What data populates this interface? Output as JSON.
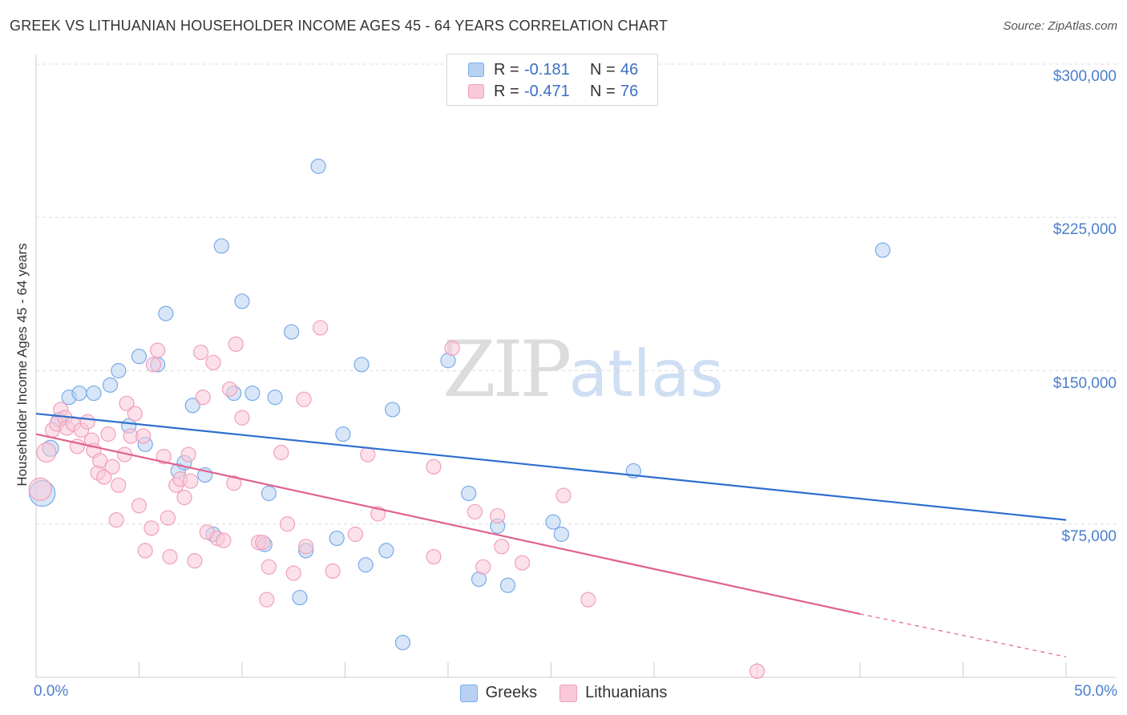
{
  "chart_data": {
    "type": "scatter",
    "title": "GREEK VS LITHUANIAN HOUSEHOLDER INCOME AGES 45 - 64 YEARS CORRELATION CHART",
    "source": "Source: ZipAtlas.com",
    "ylabel": "Householder Income Ages 45 - 64 years",
    "xlabel": "",
    "xlim": [
      0,
      50
    ],
    "ylim": [
      0,
      300000
    ],
    "x_tick_labels": [
      "0.0%",
      "50.0%"
    ],
    "y_ticks": [
      75000,
      150000,
      225000,
      300000
    ],
    "y_tick_labels": [
      "$75,000",
      "$150,000",
      "$225,000",
      "$300,000"
    ],
    "grid": true,
    "legend_placement": "top-center",
    "watermark": {
      "part1": "ZIP",
      "part2": "atlas"
    },
    "series": [
      {
        "name": "Greeks",
        "color": "#7aaae8",
        "fill": "#b8d1f3",
        "R_label": "R =",
        "R": "-0.181",
        "N_label": "N =",
        "N": "46",
        "trend": {
          "x0": 0,
          "y0": 129000,
          "x1": 50,
          "y1": 77000
        },
        "points": [
          {
            "x": 0.3,
            "y": 90000,
            "s": 16
          },
          {
            "x": 0.7,
            "y": 112000,
            "s": 10
          },
          {
            "x": 1.1,
            "y": 126000
          },
          {
            "x": 1.6,
            "y": 137000
          },
          {
            "x": 2.1,
            "y": 139000
          },
          {
            "x": 2.8,
            "y": 139000
          },
          {
            "x": 3.6,
            "y": 143000
          },
          {
            "x": 4.0,
            "y": 150000
          },
          {
            "x": 4.5,
            "y": 123000
          },
          {
            "x": 5.0,
            "y": 157000
          },
          {
            "x": 5.3,
            "y": 114000
          },
          {
            "x": 5.9,
            "y": 153000
          },
          {
            "x": 6.3,
            "y": 178000
          },
          {
            "x": 6.9,
            "y": 101000
          },
          {
            "x": 7.2,
            "y": 105000
          },
          {
            "x": 7.6,
            "y": 133000
          },
          {
            "x": 8.2,
            "y": 99000
          },
          {
            "x": 8.6,
            "y": 70000
          },
          {
            "x": 9.0,
            "y": 211000
          },
          {
            "x": 9.6,
            "y": 139000
          },
          {
            "x": 10.0,
            "y": 184000
          },
          {
            "x": 10.5,
            "y": 139000
          },
          {
            "x": 11.1,
            "y": 65000
          },
          {
            "x": 11.3,
            "y": 90000
          },
          {
            "x": 11.6,
            "y": 137000
          },
          {
            "x": 12.4,
            "y": 169000
          },
          {
            "x": 12.8,
            "y": 39000
          },
          {
            "x": 13.1,
            "y": 62000
          },
          {
            "x": 13.7,
            "y": 250000
          },
          {
            "x": 14.6,
            "y": 68000
          },
          {
            "x": 14.9,
            "y": 119000
          },
          {
            "x": 15.8,
            "y": 153000
          },
          {
            "x": 16.0,
            "y": 55000
          },
          {
            "x": 17.0,
            "y": 62000
          },
          {
            "x": 17.3,
            "y": 131000
          },
          {
            "x": 17.8,
            "y": 17000
          },
          {
            "x": 20.0,
            "y": 155000
          },
          {
            "x": 21.0,
            "y": 90000
          },
          {
            "x": 21.5,
            "y": 48000
          },
          {
            "x": 22.4,
            "y": 74000
          },
          {
            "x": 22.9,
            "y": 45000
          },
          {
            "x": 25.1,
            "y": 76000
          },
          {
            "x": 25.5,
            "y": 70000
          },
          {
            "x": 29.0,
            "y": 101000
          },
          {
            "x": 41.1,
            "y": 209000
          }
        ]
      },
      {
        "name": "Lithuanians",
        "color": "#f0a0bb",
        "fill": "#f9c9d8",
        "R_label": "R =",
        "R": "-0.471",
        "N_label": "N =",
        "N": "76",
        "trend": {
          "x0": 0,
          "y0": 119000,
          "x1": 40,
          "y1": 31000
        },
        "trend_dashed": {
          "x0": 40,
          "y0": 31000,
          "x1": 50,
          "y1": 10000
        },
        "points": [
          {
            "x": 0.2,
            "y": 92000,
            "s": 14
          },
          {
            "x": 0.5,
            "y": 110000,
            "s": 12
          },
          {
            "x": 0.8,
            "y": 121000
          },
          {
            "x": 1.0,
            "y": 124000
          },
          {
            "x": 1.2,
            "y": 131000
          },
          {
            "x": 1.4,
            "y": 127000
          },
          {
            "x": 1.5,
            "y": 122000
          },
          {
            "x": 1.8,
            "y": 124000
          },
          {
            "x": 2.0,
            "y": 113000
          },
          {
            "x": 2.2,
            "y": 121000
          },
          {
            "x": 2.5,
            "y": 125000
          },
          {
            "x": 2.7,
            "y": 116000
          },
          {
            "x": 2.8,
            "y": 111000
          },
          {
            "x": 3.0,
            "y": 100000
          },
          {
            "x": 3.1,
            "y": 106000
          },
          {
            "x": 3.3,
            "y": 98000
          },
          {
            "x": 3.5,
            "y": 119000
          },
          {
            "x": 3.7,
            "y": 103000
          },
          {
            "x": 3.9,
            "y": 77000
          },
          {
            "x": 4.0,
            "y": 94000
          },
          {
            "x": 4.3,
            "y": 109000
          },
          {
            "x": 4.4,
            "y": 134000
          },
          {
            "x": 4.6,
            "y": 118000
          },
          {
            "x": 4.8,
            "y": 129000
          },
          {
            "x": 5.0,
            "y": 84000
          },
          {
            "x": 5.2,
            "y": 118000
          },
          {
            "x": 5.3,
            "y": 62000
          },
          {
            "x": 5.6,
            "y": 73000
          },
          {
            "x": 5.7,
            "y": 153000
          },
          {
            "x": 5.9,
            "y": 160000
          },
          {
            "x": 6.2,
            "y": 108000
          },
          {
            "x": 6.4,
            "y": 78000
          },
          {
            "x": 6.5,
            "y": 59000
          },
          {
            "x": 6.8,
            "y": 94000
          },
          {
            "x": 7.0,
            "y": 97000
          },
          {
            "x": 7.2,
            "y": 88000
          },
          {
            "x": 7.4,
            "y": 109000
          },
          {
            "x": 7.5,
            "y": 96000
          },
          {
            "x": 7.7,
            "y": 57000
          },
          {
            "x": 8.0,
            "y": 159000
          },
          {
            "x": 8.1,
            "y": 137000
          },
          {
            "x": 8.3,
            "y": 71000
          },
          {
            "x": 8.6,
            "y": 154000
          },
          {
            "x": 8.8,
            "y": 68000
          },
          {
            "x": 9.1,
            "y": 67000
          },
          {
            "x": 9.4,
            "y": 141000
          },
          {
            "x": 9.6,
            "y": 95000
          },
          {
            "x": 9.7,
            "y": 163000
          },
          {
            "x": 10.0,
            "y": 127000
          },
          {
            "x": 10.8,
            "y": 66000
          },
          {
            "x": 11.0,
            "y": 66000
          },
          {
            "x": 11.2,
            "y": 38000
          },
          {
            "x": 11.3,
            "y": 54000
          },
          {
            "x": 11.9,
            "y": 110000
          },
          {
            "x": 12.2,
            "y": 75000
          },
          {
            "x": 12.5,
            "y": 51000
          },
          {
            "x": 13.0,
            "y": 136000
          },
          {
            "x": 13.1,
            "y": 64000
          },
          {
            "x": 13.8,
            "y": 171000
          },
          {
            "x": 14.4,
            "y": 52000
          },
          {
            "x": 15.5,
            "y": 70000
          },
          {
            "x": 16.1,
            "y": 109000
          },
          {
            "x": 16.6,
            "y": 80000
          },
          {
            "x": 19.3,
            "y": 103000
          },
          {
            "x": 19.3,
            "y": 59000
          },
          {
            "x": 20.2,
            "y": 161000
          },
          {
            "x": 21.3,
            "y": 81000
          },
          {
            "x": 21.7,
            "y": 54000
          },
          {
            "x": 22.4,
            "y": 79000
          },
          {
            "x": 22.6,
            "y": 64000
          },
          {
            "x": 23.6,
            "y": 56000
          },
          {
            "x": 25.6,
            "y": 89000
          },
          {
            "x": 26.8,
            "y": 38000
          },
          {
            "x": 35.0,
            "y": 3000
          }
        ]
      }
    ]
  }
}
